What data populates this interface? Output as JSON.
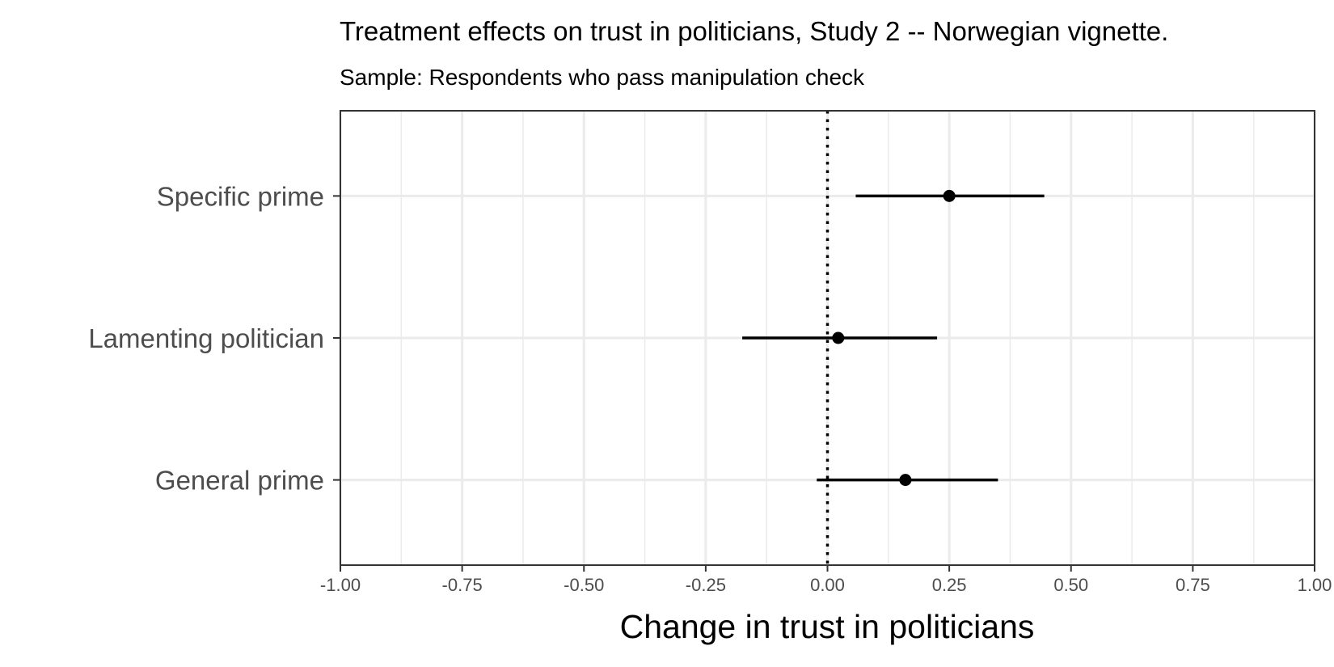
{
  "chart_data": {
    "type": "scatter",
    "title": "Treatment effects on trust in politicians, Study 2 -- Norwegian vignette.",
    "subtitle": "Sample: Respondents who pass manipulation check",
    "xlabel": "Change in trust in politicians",
    "ylabel": "",
    "xlim": [
      -1.0,
      1.0
    ],
    "x_ticks": [
      -1.0,
      -0.75,
      -0.5,
      -0.25,
      0.0,
      0.25,
      0.5,
      0.75,
      1.0
    ],
    "x_tick_labels": [
      "-1.00",
      "-0.75",
      "-0.50",
      "-0.25",
      "0.00",
      "0.25",
      "0.50",
      "0.75",
      "1.00"
    ],
    "categories": [
      "Specific prime",
      "Lamenting politician",
      "General prime"
    ],
    "estimates": [
      0.25,
      0.022,
      0.16
    ],
    "ci_low": [
      0.058,
      -0.175,
      -0.022
    ],
    "ci_high": [
      0.445,
      0.225,
      0.35
    ],
    "reference_line": 0.0,
    "grid": true,
    "legend": "none",
    "colors": {
      "point": "#000000",
      "grid": "#ebebeb",
      "axis": "#333333"
    }
  }
}
